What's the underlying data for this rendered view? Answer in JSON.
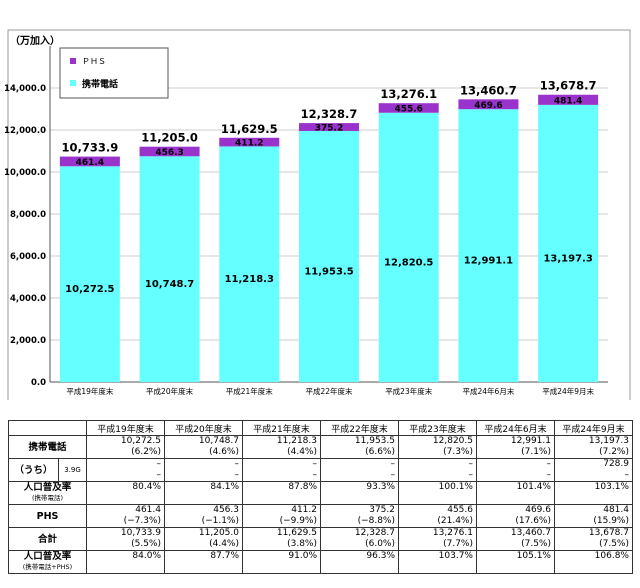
{
  "chart_data": {
    "type": "bar",
    "stacked": true,
    "ylabel": "（万加入）",
    "ylim": [
      0,
      16000
    ],
    "yticks": [
      "0.0",
      "2,000.0",
      "4,000.0",
      "6,000.0",
      "8,000.0",
      "10,000.0",
      "12,000.0",
      "14,000.0"
    ],
    "yticks_values": [
      0,
      2000,
      4000,
      6000,
      8000,
      10000,
      12000,
      14000
    ],
    "categories": [
      "平成19年度末",
      "平成20年度末",
      "平成21年度末",
      "平成22年度末",
      "平成23年度末",
      "平成24年6月末",
      "平成24年9月末"
    ],
    "series": [
      {
        "name": "携帯電話",
        "color": "#66ffff",
        "values": [
          10272.5,
          10748.7,
          11218.3,
          11953.5,
          12820.5,
          12991.1,
          13197.3
        ],
        "labels": [
          "10,272.5",
          "10,748.7",
          "11,218.3",
          "11,953.5",
          "12,820.5",
          "12,991.1",
          "13,197.3"
        ]
      },
      {
        "name": "ＰＨＳ",
        "color": "#9933cc",
        "values": [
          461.4,
          456.3,
          411.2,
          375.2,
          455.6,
          469.6,
          481.4
        ],
        "labels": [
          "461.4",
          "456.3",
          "411.2",
          "375.2",
          "455.6",
          "469.6",
          "481.4"
        ]
      }
    ],
    "totals": [
      10733.9,
      11205.0,
      11629.5,
      12328.7,
      13276.1,
      13460.7,
      13678.7
    ],
    "total_labels": [
      "10,733.9",
      "11,205.0",
      "11,629.5",
      "12,328.7",
      "13,276.1",
      "13,460.7",
      "13,678.7"
    ],
    "legend": {
      "placement": "top-left"
    }
  },
  "table": {
    "headers": [
      "平成19年度末",
      "平成20年度末",
      "平成21年度末",
      "平成22年度末",
      "平成23年度末",
      "平成24年6月末",
      "平成24年9月末"
    ],
    "rows": [
      {
        "label": "携帯電話",
        "values": [
          "10,272.5",
          "10,748.7",
          "11,218.3",
          "11,953.5",
          "12,820.5",
          "12,991.1",
          "13,197.3"
        ],
        "pcts": [
          "(6.2%)",
          "(4.6%)",
          "(4.4%)",
          "(6.6%)",
          "(7.3%)",
          "(7.1%)",
          "(7.2%)"
        ]
      },
      {
        "label": "（うち）",
        "sub": "3.9G",
        "values": [
          "–",
          "–",
          "–",
          "–",
          "–",
          "–",
          "728.9"
        ],
        "pcts": [
          "–",
          "–",
          "–",
          "–",
          "–",
          "–",
          "–"
        ]
      },
      {
        "label": "人口普及率",
        "sublabel": "(携帯電話)",
        "values": [
          "80.4%",
          "84.1%",
          "87.8%",
          "93.3%",
          "100.1%",
          "101.4%",
          "103.1%"
        ]
      },
      {
        "label": "PHS",
        "values": [
          "461.4",
          "456.3",
          "411.2",
          "375.2",
          "455.6",
          "469.6",
          "481.4"
        ],
        "pcts": [
          "(−7.3%)",
          "(−1.1%)",
          "(−9.9%)",
          "(−8.8%)",
          "(21.4%)",
          "(17.6%)",
          "(15.9%)"
        ]
      },
      {
        "label": "合計",
        "values": [
          "10,733.9",
          "11,205.0",
          "11,629.5",
          "12,328.7",
          "13,276.1",
          "13,460.7",
          "13,678.7"
        ],
        "pcts": [
          "(5.5%)",
          "(4.4%)",
          "(3.8%)",
          "(6.0%)",
          "(7.7%)",
          "(7.5%)",
          "(7.5%)"
        ]
      },
      {
        "label": "人口普及率",
        "sublabel": "(携帯電話+PHS)",
        "values": [
          "84.0%",
          "87.7%",
          "91.0%",
          "96.3%",
          "103.7%",
          "105.1%",
          "106.8%"
        ]
      }
    ]
  }
}
